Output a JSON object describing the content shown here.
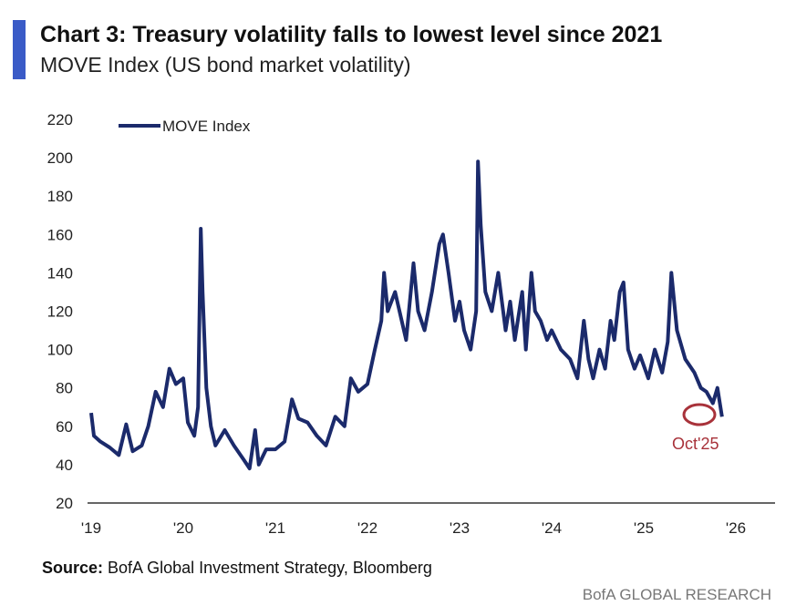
{
  "header": {
    "title": "Chart 3: Treasury volatility falls to lowest level since 2021",
    "subtitle": "MOVE Index (US bond market volatility)",
    "accent_color": "#3a5bc7"
  },
  "footer": {
    "source_label": "Source:",
    "source_text": " BofA Global Investment Strategy, Bloomberg",
    "brand": "BofA GLOBAL RESEARCH"
  },
  "chart_data": {
    "type": "line",
    "title": "Chart 3: Treasury volatility falls to lowest level since 2021",
    "subtitle": "MOVE Index (US bond market volatility)",
    "xlabel": "",
    "ylabel": "",
    "ylim": [
      20,
      220
    ],
    "xlim": [
      2019,
      2026
    ],
    "yticks": [
      20,
      40,
      60,
      80,
      100,
      120,
      140,
      160,
      180,
      200,
      220
    ],
    "xticks": [
      {
        "value": 2019,
        "label": "'19"
      },
      {
        "value": 2020,
        "label": "'20"
      },
      {
        "value": 2021,
        "label": "'21"
      },
      {
        "value": 2022,
        "label": "'22"
      },
      {
        "value": 2023,
        "label": "'23"
      },
      {
        "value": 2024,
        "label": "'24"
      },
      {
        "value": 2025,
        "label": "'25"
      },
      {
        "value": 2026,
        "label": "'26"
      }
    ],
    "grid": false,
    "legend": {
      "position": "top-left",
      "entries": [
        "MOVE Index"
      ]
    },
    "series": [
      {
        "name": "MOVE Index",
        "color": "#1b2a6b",
        "x": [
          2019.0,
          2019.03,
          2019.1,
          2019.2,
          2019.3,
          2019.38,
          2019.45,
          2019.55,
          2019.62,
          2019.7,
          2019.78,
          2019.85,
          2019.92,
          2020.0,
          2020.05,
          2020.12,
          2020.16,
          2020.19,
          2020.21,
          2020.25,
          2020.3,
          2020.35,
          2020.45,
          2020.55,
          2020.65,
          2020.72,
          2020.78,
          2020.82,
          2020.9,
          2021.0,
          2021.1,
          2021.18,
          2021.25,
          2021.35,
          2021.45,
          2021.55,
          2021.65,
          2021.75,
          2021.82,
          2021.9,
          2022.0,
          2022.08,
          2022.15,
          2022.18,
          2022.22,
          2022.3,
          2022.42,
          2022.5,
          2022.55,
          2022.62,
          2022.7,
          2022.78,
          2022.82,
          2022.88,
          2022.95,
          2023.0,
          2023.05,
          2023.12,
          2023.18,
          2023.2,
          2023.23,
          2023.28,
          2023.35,
          2023.42,
          2023.5,
          2023.55,
          2023.6,
          2023.68,
          2023.72,
          2023.78,
          2023.82,
          2023.88,
          2023.95,
          2024.0,
          2024.1,
          2024.2,
          2024.28,
          2024.35,
          2024.4,
          2024.45,
          2024.52,
          2024.58,
          2024.64,
          2024.68,
          2024.74,
          2024.78,
          2024.83,
          2024.9,
          2024.96,
          2025.05,
          2025.12,
          2025.2,
          2025.26,
          2025.3,
          2025.36,
          2025.45,
          2025.55,
          2025.62,
          2025.68,
          2025.75,
          2025.8,
          2025.85
        ],
        "values": [
          67,
          55,
          52,
          49,
          45,
          61,
          47,
          50,
          60,
          78,
          70,
          90,
          82,
          85,
          62,
          55,
          70,
          163,
          130,
          80,
          60,
          50,
          58,
          50,
          43,
          38,
          58,
          40,
          48,
          48,
          52,
          74,
          64,
          62,
          55,
          50,
          65,
          60,
          85,
          78,
          82,
          100,
          115,
          140,
          120,
          130,
          105,
          145,
          120,
          110,
          130,
          155,
          160,
          140,
          115,
          125,
          110,
          100,
          120,
          198,
          165,
          130,
          120,
          140,
          110,
          125,
          105,
          130,
          100,
          140,
          120,
          115,
          105,
          110,
          100,
          95,
          85,
          115,
          95,
          85,
          100,
          90,
          115,
          105,
          130,
          135,
          100,
          90,
          97,
          85,
          100,
          88,
          104,
          140,
          110,
          95,
          88,
          80,
          78,
          72,
          80,
          65
        ]
      }
    ],
    "annotations": [
      {
        "text": "Oct'25",
        "x": 2025.82,
        "y": 68,
        "color": "#a8323a"
      }
    ]
  }
}
